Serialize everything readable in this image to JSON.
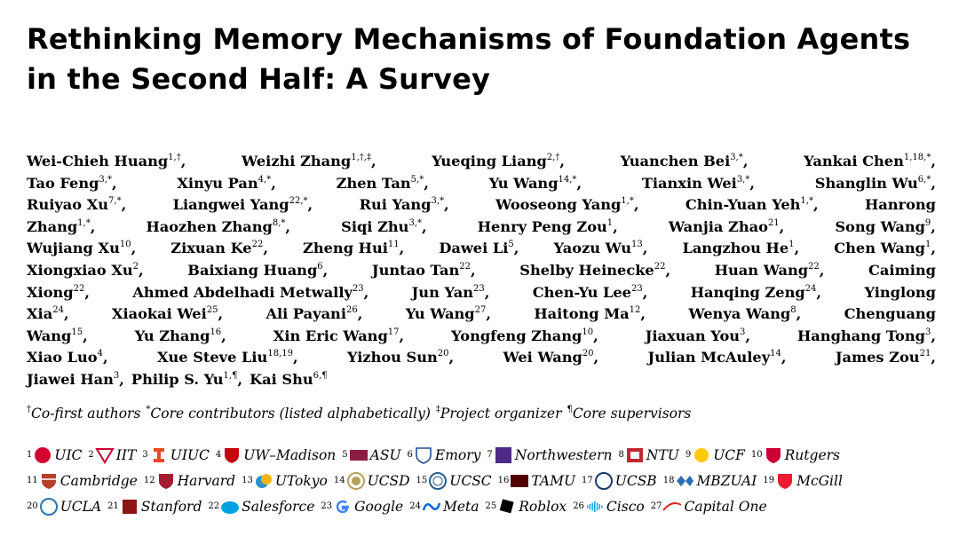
{
  "title": {
    "line1": "Rethinking Memory Mechanisms of Foundation Agents",
    "line2": "in the Second Half: A Survey"
  },
  "authors": [
    [
      [
        "Wei-Chieh Huang",
        "1,†"
      ],
      [
        "Weizhi Zhang",
        "1,†,‡"
      ],
      [
        "Yueqing Liang",
        "2,†"
      ],
      [
        "Yuanchen Bei",
        "3,*"
      ],
      [
        "Yankai Chen",
        "1,18,*"
      ]
    ],
    [
      [
        "Tao Feng",
        "3,*"
      ],
      [
        "Xinyu Pan",
        "4,*"
      ],
      [
        "Zhen Tan",
        "5,*"
      ],
      [
        "Yu Wang",
        "14,*"
      ],
      [
        "Tianxin Wei",
        "3,*"
      ],
      [
        "Shanglin Wu",
        "6,*"
      ]
    ],
    [
      [
        "Ruiyao Xu",
        "7,*"
      ],
      [
        "Liangwei Yang",
        "22,*"
      ],
      [
        "Rui Yang",
        "3,*"
      ],
      [
        "Wooseong Yang",
        "1,*"
      ],
      [
        "Chin-Yuan Yeh",
        "1,*"
      ],
      [
        "Hanrong",
        ""
      ]
    ],
    [
      [
        "Zhang",
        "1,*"
      ],
      [
        "Haozhen Zhang",
        "8,*"
      ],
      [
        "Siqi Zhu",
        "3,*"
      ],
      [
        "Henry Peng Zou",
        "1"
      ],
      [
        "Wanjia Zhao",
        "21"
      ],
      [
        "Song Wang",
        "9"
      ]
    ],
    [
      [
        "Wujiang Xu",
        "10"
      ],
      [
        "Zixuan Ke",
        "22"
      ],
      [
        "Zheng Hui",
        "11"
      ],
      [
        "Dawei Li",
        "5"
      ],
      [
        "Yaozu Wu",
        "13"
      ],
      [
        "Langzhou He",
        "1"
      ],
      [
        "Chen Wang",
        "1"
      ]
    ],
    [
      [
        "Xiongxiao Xu",
        "2"
      ],
      [
        "Baixiang Huang",
        "6"
      ],
      [
        "Juntao Tan",
        "22"
      ],
      [
        "Shelby Heinecke",
        "22"
      ],
      [
        "Huan Wang",
        "22"
      ],
      [
        "Caiming",
        ""
      ]
    ],
    [
      [
        "Xiong",
        "22"
      ],
      [
        "Ahmed Abdelhadi Metwally",
        "23"
      ],
      [
        "Jun Yan",
        "23"
      ],
      [
        "Chen-Yu Lee",
        "23"
      ],
      [
        "Hanqing Zeng",
        "24"
      ],
      [
        "Yinglong",
        ""
      ]
    ],
    [
      [
        "Xia",
        "24"
      ],
      [
        "Xiaokai Wei",
        "25"
      ],
      [
        "Ali Payani",
        "26"
      ],
      [
        "Yu Wang",
        "27"
      ],
      [
        "Haitong Ma",
        "12"
      ],
      [
        "Wenya Wang",
        "8"
      ],
      [
        "Chenguang",
        ""
      ]
    ],
    [
      [
        "Wang",
        "15"
      ],
      [
        "Yu Zhang",
        "16"
      ],
      [
        "Xin Eric Wang",
        "17"
      ],
      [
        "Yongfeng Zhang",
        "10"
      ],
      [
        "Jiaxuan You",
        "3"
      ],
      [
        "Hanghang Tong",
        "3"
      ]
    ],
    [
      [
        "Xiao Luo",
        "4"
      ],
      [
        "Xue Steve Liu",
        "18,19"
      ],
      [
        "Yizhou Sun",
        "20"
      ],
      [
        "Wei Wang",
        "20"
      ],
      [
        "Julian McAuley",
        "14"
      ],
      [
        "James Zou",
        "21"
      ]
    ],
    [
      [
        "Jiawei Han",
        "3"
      ],
      [
        "Philip S. Yu",
        "1,¶"
      ],
      [
        "Kai Shu",
        "6,¶"
      ]
    ]
  ],
  "notes": [
    {
      "mark": "†",
      "text": "Co-first authors"
    },
    {
      "mark": "*",
      "text": "Core contributors (listed alphabetically)"
    },
    {
      "mark": "‡",
      "text": "Project organizer"
    },
    {
      "mark": "¶",
      "text": "Core supervisors"
    }
  ],
  "affiliations": [
    [
      {
        "num": "1",
        "name": "UIC",
        "icon": "uic-logo",
        "color": "#d50032"
      },
      {
        "num": "2",
        "name": "IIT",
        "icon": "iit-logo",
        "color": "#cc0033"
      },
      {
        "num": "3",
        "name": "UIUC",
        "icon": "uiuc-logo",
        "color": "#e84a27"
      },
      {
        "num": "4",
        "name": "UW–Madison",
        "icon": "uw-madison-logo",
        "color": "#c5050c"
      },
      {
        "num": "5",
        "name": "ASU",
        "icon": "asu-logo",
        "color": "#8c1d40"
      },
      {
        "num": "6",
        "name": "Emory",
        "icon": "emory-logo",
        "color": "#1f4e8c"
      },
      {
        "num": "7",
        "name": "Northwestern",
        "icon": "northwestern-logo",
        "color": "#4e2a84"
      },
      {
        "num": "8",
        "name": "NTU",
        "icon": "ntu-logo",
        "color": "#c1272d"
      },
      {
        "num": "9",
        "name": "UCF",
        "icon": "ucf-logo",
        "color": "#ffc904"
      },
      {
        "num": "10",
        "name": "Rutgers",
        "icon": "rutgers-logo",
        "color": "#cc0033"
      }
    ],
    [
      {
        "num": "11",
        "name": "Cambridge",
        "icon": "cambridge-logo",
        "color": "#b5402a"
      },
      {
        "num": "12",
        "name": "Harvard",
        "icon": "harvard-logo",
        "color": "#a51c30"
      },
      {
        "num": "13",
        "name": "UTokyo",
        "icon": "utokyo-logo",
        "color": "#f5b500"
      },
      {
        "num": "14",
        "name": "UCSD",
        "icon": "ucsd-logo",
        "color": "#b8a05a"
      },
      {
        "num": "15",
        "name": "UCSC",
        "icon": "ucsc-logo",
        "color": "#2c5f8a"
      },
      {
        "num": "16",
        "name": "TAMU",
        "icon": "tamu-logo",
        "color": "#500000"
      },
      {
        "num": "17",
        "name": "UCSB",
        "icon": "ucsb-logo",
        "color": "#1a3a6b"
      },
      {
        "num": "18",
        "name": "MBZUAI",
        "icon": "mbzuai-logo",
        "color": "#2d6fb5"
      },
      {
        "num": "19",
        "name": "McGill",
        "icon": "mcgill-logo",
        "color": "#ed1b2f"
      }
    ],
    [
      {
        "num": "20",
        "name": "UCLA",
        "icon": "ucla-logo",
        "color": "#2774ae"
      },
      {
        "num": "21",
        "name": "Stanford",
        "icon": "stanford-logo",
        "color": "#8c1515"
      },
      {
        "num": "22",
        "name": "Salesforce",
        "icon": "salesforce-logo",
        "color": "#00a1e0"
      },
      {
        "num": "23",
        "name": "Google",
        "icon": "google-logo",
        "color": "#4285f4"
      },
      {
        "num": "24",
        "name": "Meta",
        "icon": "meta-logo",
        "color": "#0668e1"
      },
      {
        "num": "25",
        "name": "Roblox",
        "icon": "roblox-logo",
        "color": "#000000"
      },
      {
        "num": "26",
        "name": "Cisco",
        "icon": "cisco-logo",
        "color": "#049fd9"
      },
      {
        "num": "27",
        "name": "Capital One",
        "icon": "capital-one-logo",
        "color": "#004879"
      }
    ]
  ]
}
